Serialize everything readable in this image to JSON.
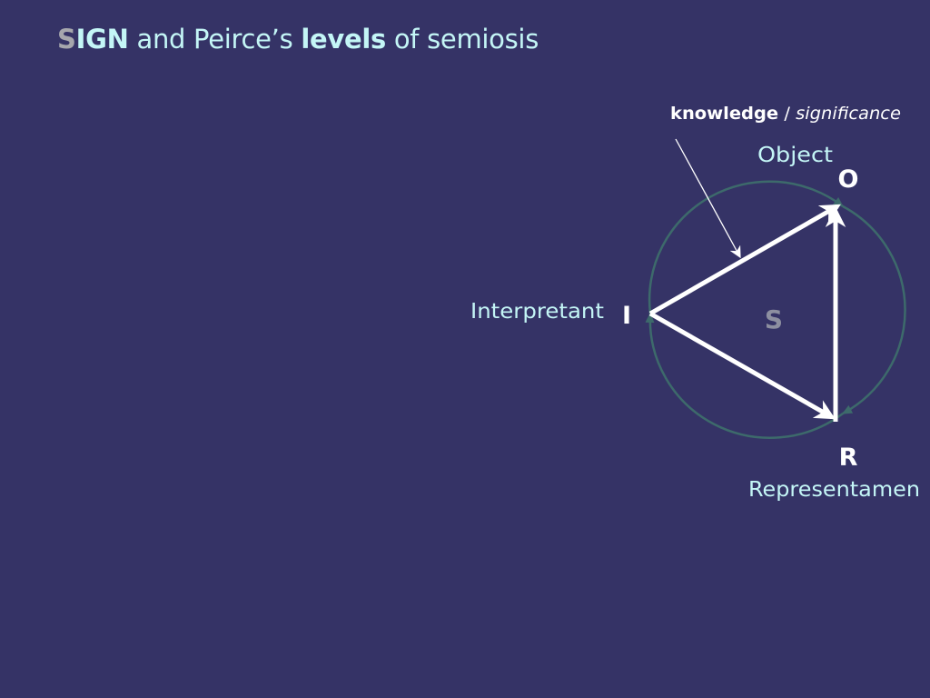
{
  "title": {
    "initial": "S",
    "rest": "IGN",
    "and_peirce": " and Peirce’s ",
    "levels": "levels",
    "suffix": " of semiosis"
  },
  "diagram": {
    "annotation": {
      "knowledge": "knowledge",
      "separator": " / ",
      "significance": "significance"
    },
    "nodes": {
      "object": {
        "letter": "O",
        "label": "Object"
      },
      "interpretant": {
        "letter": "I",
        "label": "Interpretant"
      },
      "representamen": {
        "letter": "R",
        "label": "Representamen"
      }
    },
    "center": "S"
  },
  "colors": {
    "background": "#353366",
    "title_text": "#c4f6f6",
    "title_initial": "#a6a7ad",
    "arrows": "#ffffff",
    "circle": "#3d6a6b",
    "center_letter": "#8d8fa0"
  }
}
